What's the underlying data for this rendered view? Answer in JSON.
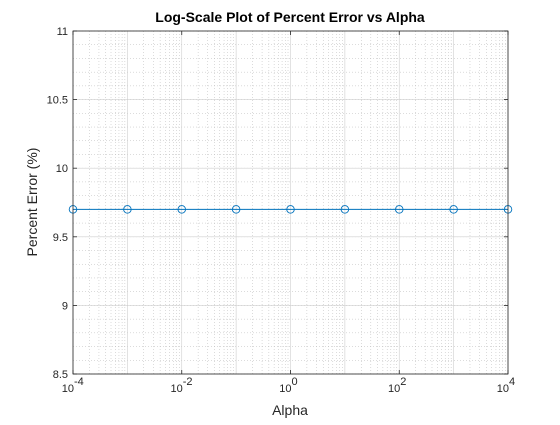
{
  "chart_data": {
    "type": "line",
    "title": "Log-Scale Plot of Percent Error vs Alpha",
    "xlabel": "Alpha",
    "ylabel": "Percent Error (%)",
    "x_scale": "log",
    "xlim": [
      0.0001,
      10000
    ],
    "ylim": [
      8.5,
      11
    ],
    "grid": true,
    "minor_grid": true,
    "x_ticks": [
      {
        "value": 0.0001,
        "base": "10",
        "exp": "-4"
      },
      {
        "value": 0.01,
        "base": "10",
        "exp": "-2"
      },
      {
        "value": 1,
        "base": "10",
        "exp": "0"
      },
      {
        "value": 100,
        "base": "10",
        "exp": "2"
      },
      {
        "value": 10000,
        "base": "10",
        "exp": "4"
      }
    ],
    "y_ticks": [
      {
        "value": 8.5,
        "label": "8.5"
      },
      {
        "value": 9,
        "label": "9"
      },
      {
        "value": 9.5,
        "label": "9.5"
      },
      {
        "value": 10,
        "label": "10"
      },
      {
        "value": 10.5,
        "label": "10.5"
      },
      {
        "value": 11,
        "label": "11"
      }
    ],
    "series": [
      {
        "color": "#0072BD",
        "marker": "circle",
        "x": [
          0.0001,
          0.001,
          0.01,
          0.1,
          1,
          10,
          100,
          1000,
          10000
        ],
        "y": [
          9.7,
          9.7,
          9.7,
          9.7,
          9.7,
          9.7,
          9.7,
          9.7,
          9.7
        ]
      }
    ]
  }
}
